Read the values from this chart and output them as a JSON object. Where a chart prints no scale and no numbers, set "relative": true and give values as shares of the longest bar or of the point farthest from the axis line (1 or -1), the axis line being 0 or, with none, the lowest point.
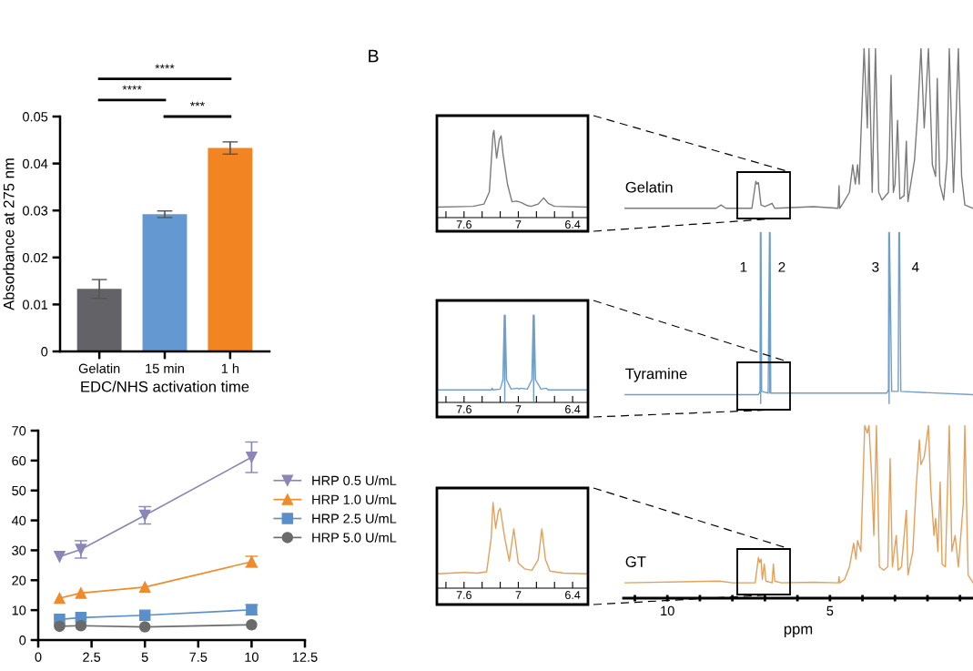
{
  "chart_data": [
    {
      "type": "bar",
      "ylabel": "Absorbance at 275 nm",
      "xlabel": "EDC/NHS activation time",
      "categories": [
        "Gelatin",
        "15 min",
        "1 h"
      ],
      "values": [
        0.0133,
        0.0292,
        0.0433
      ],
      "errors": [
        0.002,
        0.0007,
        0.0013
      ],
      "colors": [
        "#636267",
        "#6498d0",
        "#f28522"
      ],
      "ylim": [
        0,
        0.05
      ],
      "yticks": [
        0,
        0.01,
        0.02,
        0.03,
        0.04,
        0.05
      ],
      "annotations": [
        "****",
        "***",
        "****"
      ]
    },
    {
      "type": "line",
      "x": [
        1,
        2,
        5,
        10
      ],
      "xlim": [
        0,
        12.5
      ],
      "xticks": [
        0,
        2.5,
        5,
        7.5,
        10,
        12.5
      ],
      "ylim": [
        0,
        70
      ],
      "yticks": [
        0,
        10,
        20,
        30,
        40,
        50,
        60,
        70
      ],
      "legend": "right",
      "series": [
        {
          "name": "HRP 0.5 U/mL",
          "color": "#8a87b8",
          "marker": "triangle_down",
          "values": [
            27.9,
            30.3,
            41.7,
            61.1
          ],
          "errors": [
            null,
            2.9,
            2.9,
            5.1
          ]
        },
        {
          "name": "HRP 1.0 U/mL",
          "color": "#ef8b2c",
          "marker": "triangle",
          "values": [
            14.0,
            15.7,
            17.7,
            26.2
          ],
          "errors": [
            null,
            null,
            null,
            1.8
          ]
        },
        {
          "name": "HRP 2.5 U/mL",
          "color": "#5b8fc9",
          "marker": "square",
          "values": [
            6.9,
            7.5,
            8.3,
            10.1
          ],
          "errors": [
            null,
            null,
            null,
            1.7
          ]
        },
        {
          "name": "HRP 5.0 U/mL",
          "color": "#6b6b6b",
          "marker": "circle",
          "values": [
            4.6,
            4.8,
            4.4,
            5.1
          ]
        }
      ]
    },
    {
      "type": "line",
      "relative": true,
      "title": "B",
      "xlim": [
        7.9,
        6.23
      ],
      "xticks": [
        {
          "value": 7.8,
          "label": null
        },
        7.6,
        {
          "value": 7.4,
          "label": null
        },
        {
          "value": 7.2,
          "label": null
        },
        7,
        {
          "value": 6.8,
          "label": null
        },
        {
          "value": 6.6,
          "label": null
        },
        6.4
      ],
      "series": [
        {
          "color": "#7a7a7a",
          "x": [
            7.9,
            7.5,
            7.38,
            7.32,
            7.28,
            7.27,
            7.24,
            7.21,
            7.19,
            7.17,
            7.12,
            7.07,
            7.02,
            6.97,
            6.9,
            6.86,
            6.78,
            6.72,
            6.67,
            6.6,
            6.23
          ],
          "values": [
            0.12,
            0.129,
            0.155,
            0.296,
            0.956,
            1,
            0.683,
            0.894,
            0.938,
            0.736,
            0.384,
            0.182,
            0.19,
            0.173,
            0.138,
            0.129,
            0.155,
            0.226,
            0.164,
            0.129,
            0.12
          ]
        }
      ]
    },
    {
      "type": "line",
      "relative": true,
      "xlim": [
        7.9,
        6.23
      ],
      "xticks": [
        {
          "value": 7.8,
          "label": null
        },
        7.6,
        {
          "value": 7.4,
          "label": null
        },
        {
          "value": 7.2,
          "label": null
        },
        7,
        {
          "value": 6.8,
          "label": null
        },
        {
          "value": 6.6,
          "label": null
        },
        6.4
      ],
      "series": [
        {
          "color": "#6f9fc8",
          "x": [
            7.9,
            7.3,
            7.29,
            7.28,
            7.2,
            7.17,
            7.155,
            7.15,
            7.145,
            7.13,
            7.08,
            7.01,
            6.99,
            6.97,
            6.9,
            6.85,
            6.835,
            6.83,
            6.825,
            6.81,
            6.75,
            6.69,
            6.67,
            6.23
          ],
          "values": [
            0.143,
            0.143,
            0.163,
            0.143,
            0.153,
            0.261,
            1,
            0.015,
            1,
            0.261,
            0.153,
            0.163,
            0.153,
            0.163,
            0.153,
            0.261,
            1,
            0.015,
            1,
            0.261,
            0.153,
            0.163,
            0.143,
            0.143
          ]
        }
      ]
    },
    {
      "type": "line",
      "relative": true,
      "xlim": [
        7.9,
        6.23
      ],
      "xticks": [
        {
          "value": 7.8,
          "label": null
        },
        7.6,
        {
          "value": 7.4,
          "label": null
        },
        {
          "value": 7.2,
          "label": null
        },
        7,
        {
          "value": 6.8,
          "label": null
        },
        {
          "value": 6.6,
          "label": null
        },
        6.4
      ],
      "series": [
        {
          "color": "#e3a05a",
          "x": [
            7.9,
            7.6,
            7.45,
            7.35,
            7.3,
            7.28,
            7.25,
            7.22,
            7.2,
            7.15,
            7.1,
            7.05,
            7.0,
            6.93,
            6.85,
            6.78,
            6.74,
            6.7,
            6.65,
            6.5,
            6.23
          ],
          "values": [
            0.167,
            0.184,
            0.175,
            0.192,
            0.584,
            1,
            0.7,
            0.9,
            0.933,
            0.584,
            0.317,
            0.692,
            0.292,
            0.225,
            0.209,
            0.334,
            0.692,
            0.334,
            0.2,
            0.175,
            0.167
          ]
        }
      ]
    },
    {
      "type": "line",
      "relative": true,
      "xlim": [
        11.35,
        0.6
      ],
      "xlabel": "ppm",
      "xticks": [
        {
          "value": 11,
          "label": null
        },
        10,
        {
          "value": 9,
          "label": null
        },
        {
          "value": 8,
          "label": null
        },
        {
          "value": 7,
          "label": null
        },
        {
          "value": 6,
          "label": null
        },
        5,
        {
          "value": 4,
          "label": null
        },
        {
          "value": 3,
          "label": null
        },
        {
          "value": 2,
          "label": null
        },
        {
          "value": 1,
          "label": null
        }
      ],
      "annotations": [
        "1",
        "2",
        "3",
        "4"
      ],
      "series": [
        {
          "name": "Gelatin",
          "color": "#7a7a7a",
          "x": [
            11.3,
            9.5,
            8.5,
            8.35,
            8.2,
            7.4,
            7.28,
            7.24,
            7.2,
            7.12,
            7.0,
            6.78,
            6.7,
            5.5,
            4.75,
            4.72,
            4.7,
            4.6,
            4.4,
            4.3,
            4.22,
            4.15,
            4.1,
            3.95,
            3.85,
            3.8,
            3.7,
            3.6,
            3.5,
            3.4,
            3.2,
            3.12,
            3.05,
            3.0,
            2.92,
            2.85,
            2.72,
            2.65,
            2.6,
            2.4,
            2.3,
            2.2,
            2.1,
            1.97,
            1.92,
            1.85,
            1.75,
            1.7,
            1.62,
            1.5,
            1.4,
            1.33,
            1.2,
            1.05,
            0.95,
            0.85,
            0.6
          ],
          "values": [
            0.709,
            0.709,
            0.709,
            0.715,
            0.709,
            0.709,
            0.758,
            0.753,
            0.756,
            0.715,
            0.712,
            0.718,
            0.709,
            0.712,
            0.709,
            0.75,
            0.709,
            0.718,
            0.738,
            0.788,
            0.753,
            0.788,
            0.753,
            1,
            0.855,
            1,
            0.738,
            1,
            0.738,
            0.724,
            0.738,
            0.951,
            0.738,
            0.753,
            0.869,
            0.726,
            0.732,
            0.831,
            0.721,
            0.796,
            0.884,
            1,
            0.855,
            1,
            0.913,
            0.788,
            0.767,
            0.945,
            0.753,
            0.724,
            0.796,
            1,
            0.738,
            1,
            0.767,
            0.715,
            0.709
          ]
        },
        {
          "name": "Tyramine",
          "color": "#6f9fc8",
          "x": [
            11.3,
            7.2,
            7.15,
            7.14,
            7.13,
            7.12,
            7.1,
            6.9,
            6.86,
            6.85,
            6.84,
            6.82,
            3.25,
            3.2,
            3.19,
            3.18,
            3.17,
            3.1,
            2.9,
            2.88,
            2.86,
            2.82,
            0.6
          ],
          "values": [
            0.37,
            0.37,
            0.376,
            0.665,
            0.354,
            0.665,
            0.376,
            0.373,
            0.665,
            0.373,
            0.665,
            0.373,
            0.373,
            0.379,
            0.665,
            0.354,
            0.665,
            0.376,
            0.376,
            0.665,
            0.665,
            0.376,
            0.37
          ]
        },
        {
          "name": "GT",
          "color": "#e3a05a",
          "x": [
            11.3,
            8.4,
            8.0,
            7.3,
            7.2,
            7.16,
            7.12,
            7.08,
            7.02,
            6.97,
            6.78,
            6.74,
            6.7,
            6.5,
            5.5,
            4.74,
            4.72,
            4.7,
            4.55,
            4.4,
            4.27,
            4.2,
            4.15,
            4.05,
            3.93,
            3.85,
            3.8,
            3.72,
            3.65,
            3.57,
            3.48,
            3.35,
            3.22,
            3.15,
            3.08,
            2.96,
            2.9,
            2.8,
            2.65,
            2.6,
            2.45,
            2.35,
            2.25,
            2.2,
            2.1,
            1.97,
            1.9,
            1.8,
            1.75,
            1.68,
            1.61,
            1.55,
            1.45,
            1.33,
            1.25,
            1.15,
            1.05,
            0.9,
            0.85,
            0.75,
            0.6
          ],
          "values": [
            0.028,
            0.031,
            0.028,
            0.028,
            0.074,
            0.065,
            0.071,
            0.034,
            0.062,
            0.031,
            0.028,
            0.062,
            0.031,
            0.028,
            0.029,
            0.028,
            0.039,
            0.028,
            0.034,
            0.057,
            0.1,
            0.071,
            0.105,
            0.085,
            0.314,
            0.3,
            0.314,
            0.225,
            0.114,
            0.314,
            0.057,
            0.051,
            0.057,
            0.254,
            0.057,
            0.114,
            0.051,
            0.057,
            0.16,
            0.042,
            0.085,
            0.2,
            0.288,
            0.243,
            0.257,
            0.314,
            0.2,
            0.114,
            0.145,
            0.085,
            0.211,
            0.062,
            0.057,
            0.314,
            0.085,
            0.114,
            0.057,
            0.171,
            0.314,
            0.042,
            0.028
          ]
        }
      ]
    }
  ]
}
